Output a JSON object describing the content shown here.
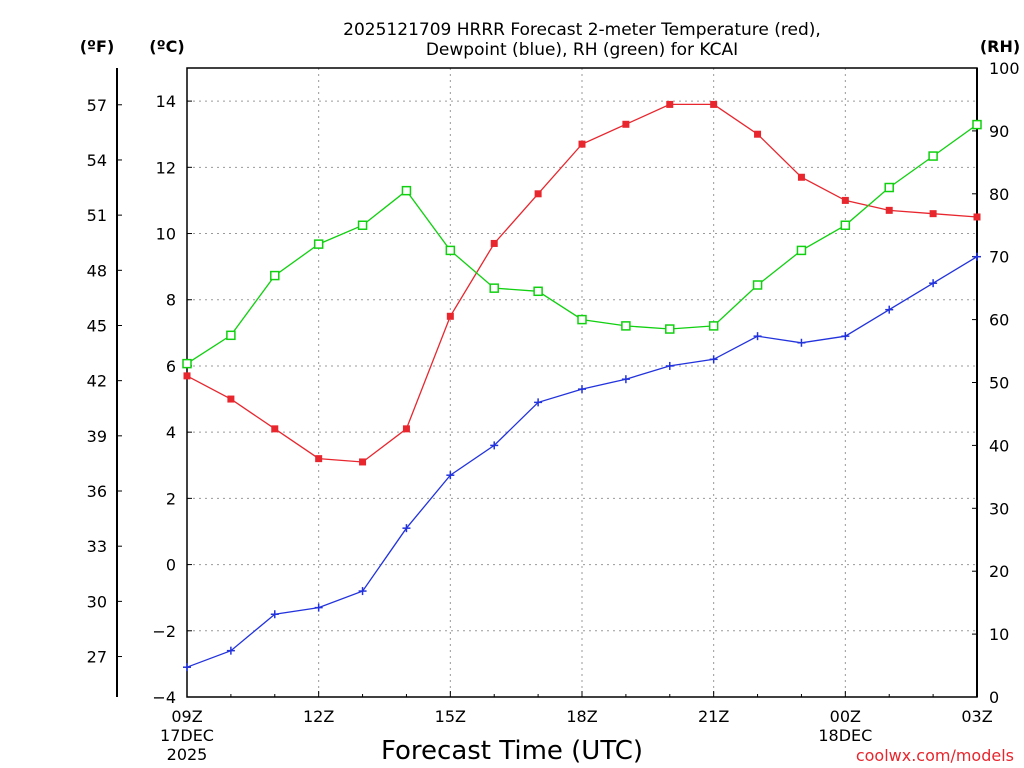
{
  "chart_data": {
    "type": "line",
    "title_line1": "2025121709 HRRR Forecast 2-meter Temperature (red),",
    "title_line2": "Dewpoint (blue), RH (green) for KCAI",
    "xlabel": "Forecast Time (UTC)",
    "credit": "coolwx.com/models",
    "units": {
      "fahrenheit": "(ºF)",
      "celsius": "(ºC)",
      "rh": "(RH)"
    },
    "colors": {
      "temperature": "#e8262e",
      "dewpoint": "#2233dd",
      "rh": "#10d010"
    },
    "x_hours": [
      9,
      10,
      11,
      12,
      13,
      14,
      15,
      16,
      17,
      18,
      19,
      20,
      21,
      22,
      23,
      24,
      25,
      26,
      27
    ],
    "x_ticks": [
      {
        "hour": 9,
        "label": "09Z",
        "sub1": "17DEC",
        "sub2": "2025"
      },
      {
        "hour": 12,
        "label": "12Z",
        "sub1": "",
        "sub2": ""
      },
      {
        "hour": 15,
        "label": "15Z",
        "sub1": "",
        "sub2": ""
      },
      {
        "hour": 18,
        "label": "18Z",
        "sub1": "",
        "sub2": ""
      },
      {
        "hour": 21,
        "label": "21Z",
        "sub1": "",
        "sub2": ""
      },
      {
        "hour": 24,
        "label": "00Z",
        "sub1": "18DEC",
        "sub2": ""
      },
      {
        "hour": 27,
        "label": "03Z",
        "sub1": "",
        "sub2": ""
      }
    ],
    "celsius_axis": {
      "min": -4,
      "max": 15,
      "ticks": [
        -4,
        -2,
        0,
        2,
        4,
        6,
        8,
        10,
        12,
        14
      ],
      "labels": [
        "−4",
        "−2",
        "0",
        "2",
        "4",
        "6",
        "8",
        "10",
        "12",
        "14"
      ]
    },
    "fahrenheit_axis": {
      "ticks": [
        27,
        30,
        33,
        36,
        39,
        42,
        45,
        48,
        51,
        54,
        57
      ],
      "labels": [
        "27",
        "30",
        "33",
        "36",
        "39",
        "42",
        "45",
        "48",
        "51",
        "54",
        "57"
      ]
    },
    "rh_axis": {
      "min": 0,
      "max": 100,
      "ticks": [
        0,
        10,
        20,
        30,
        40,
        50,
        60,
        70,
        80,
        90,
        100
      ],
      "labels": [
        "0",
        "10",
        "20",
        "30",
        "40",
        "50",
        "60",
        "70",
        "80",
        "90",
        "100"
      ]
    },
    "series": [
      {
        "name": "Temperature",
        "unit": "C",
        "color": "#e8262e",
        "marker": "filled-square",
        "values": [
          5.7,
          5.0,
          4.1,
          3.2,
          3.1,
          4.1,
          7.5,
          9.7,
          11.2,
          12.7,
          13.3,
          13.9,
          13.9,
          13.0,
          11.7,
          11.0,
          10.7,
          10.6,
          10.5
        ]
      },
      {
        "name": "Dewpoint",
        "unit": "C",
        "color": "#2233dd",
        "marker": "plus",
        "values": [
          -3.1,
          -2.6,
          -1.5,
          -1.3,
          -0.8,
          1.1,
          2.7,
          3.6,
          4.9,
          5.3,
          5.6,
          6.0,
          6.2,
          6.9,
          6.7,
          6.9,
          7.7,
          8.5,
          9.3
        ]
      },
      {
        "name": "RH",
        "unit": "%",
        "color": "#10d010",
        "marker": "open-square",
        "values": [
          53,
          57.5,
          67,
          72,
          75,
          80.5,
          71,
          65,
          64.5,
          60,
          59,
          58.5,
          59,
          65.5,
          71,
          75,
          81,
          86,
          91
        ]
      }
    ]
  }
}
